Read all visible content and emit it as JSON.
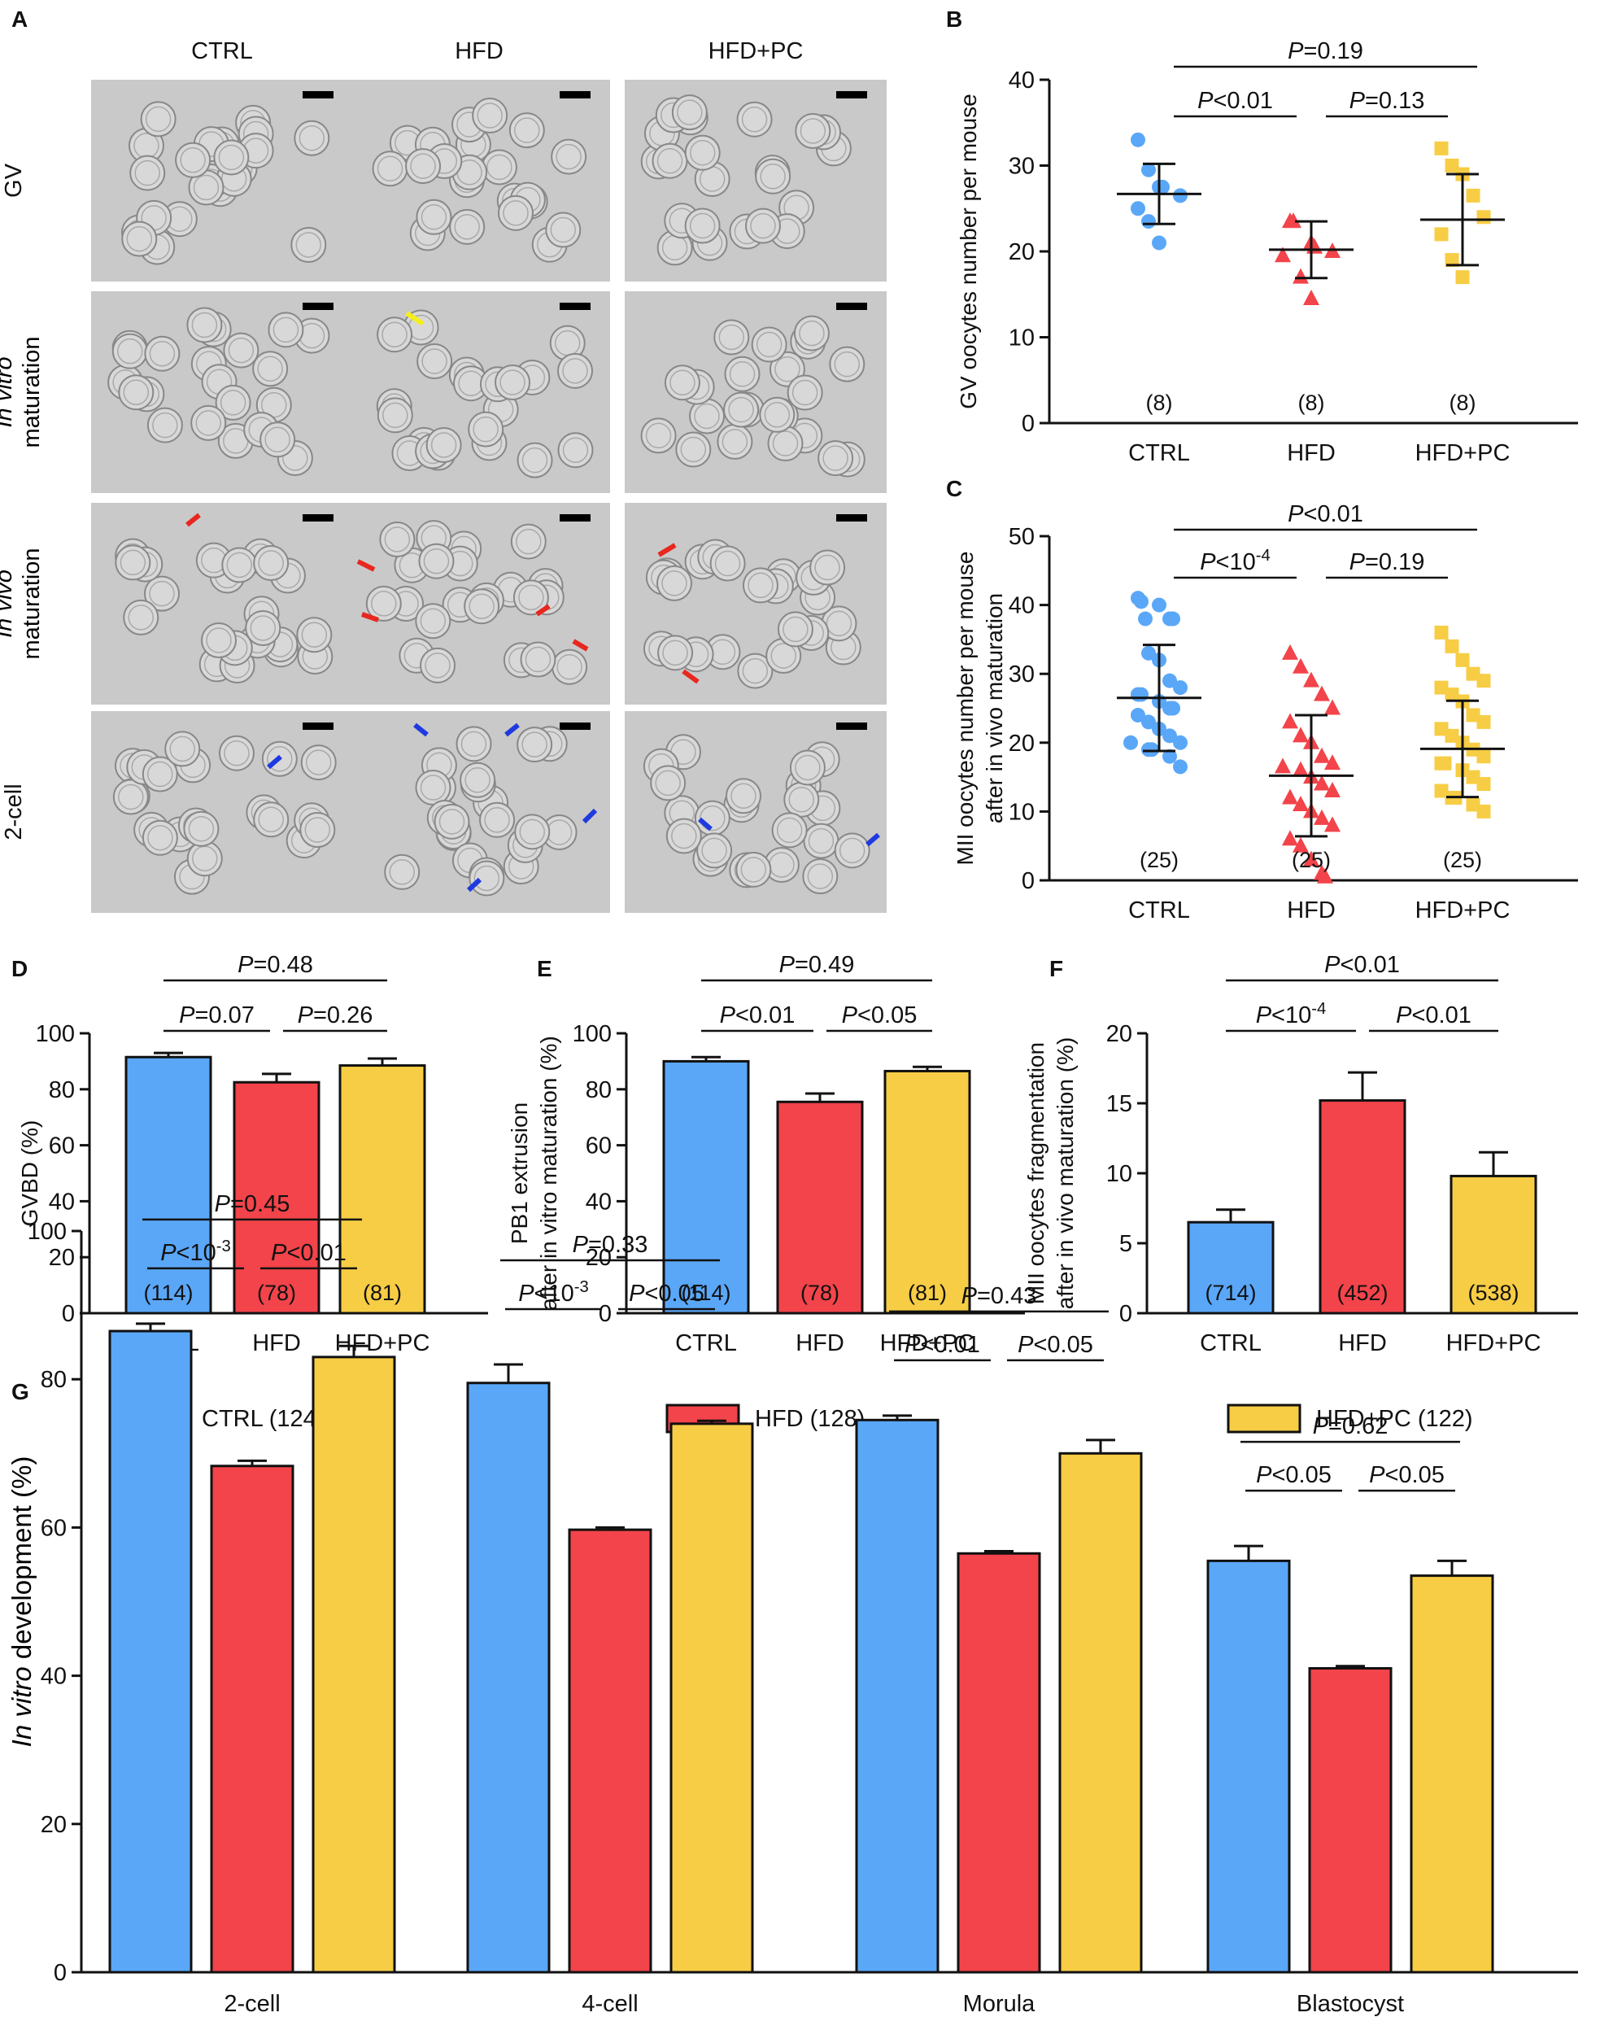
{
  "colors": {
    "ctrl": "#5aa7f8",
    "hfd": "#f2444a",
    "hfdpc": "#f7cd45",
    "red_arrow": "#e8271f",
    "blue_arrow": "#1f3ae0",
    "yellow_arrow": "#f4ef1b",
    "micrograph_bg": "#c9c9c9"
  },
  "panel_a": {
    "letter": "A",
    "columns": [
      "CTRL",
      "HFD",
      "HFD+PC"
    ],
    "rows": [
      {
        "label": "GV"
      },
      {
        "label_italic": "In vitro",
        "label2": "maturation"
      },
      {
        "label_italic": "In vivo",
        "label2": "maturation"
      },
      {
        "label": "2-cell"
      }
    ]
  },
  "chart_data": [
    {
      "id": "B",
      "type": "scatter",
      "letter": "B",
      "ylabel": "GV oocytes number per mouse",
      "categories": [
        "CTRL",
        "HFD",
        "HFD+PC"
      ],
      "ylim": [
        0,
        40
      ],
      "yticks": [
        0,
        10,
        20,
        30,
        40
      ],
      "series": [
        {
          "name": "CTRL",
          "values": [
            33,
            29.5,
            27.5,
            27.5,
            26.5,
            25,
            23.5,
            21
          ],
          "mean": 26.7,
          "sd": 3.5,
          "n": "(8)"
        },
        {
          "name": "HFD",
          "values": [
            23.5,
            23.5,
            21,
            20.5,
            20,
            19.5,
            17,
            14.5
          ],
          "mean": 20.2,
          "sd": 3.3,
          "n": "(8)"
        },
        {
          "name": "HFD+PC",
          "values": [
            32,
            30,
            29,
            26.5,
            24,
            22,
            19,
            17
          ],
          "mean": 23.7,
          "sd": 5.3,
          "n": "(8)"
        }
      ],
      "comparisons": [
        {
          "from": 0,
          "to": 2,
          "p": "=0.19"
        },
        {
          "from": 0,
          "to": 1,
          "p": "<0.01"
        },
        {
          "from": 1,
          "to": 2,
          "p": "=0.13"
        }
      ]
    },
    {
      "id": "C",
      "type": "scatter",
      "letter": "C",
      "ylabel": "MII oocytes number per mouse",
      "ylabel2": "after in vivo maturation",
      "categories": [
        "CTRL",
        "HFD",
        "HFD+PC"
      ],
      "ylim": [
        0,
        50
      ],
      "yticks": [
        0,
        10,
        20,
        30,
        40,
        50
      ],
      "series": [
        {
          "name": "CTRL",
          "values": [
            41,
            40.5,
            40,
            38,
            38,
            38,
            33,
            32,
            29,
            28,
            27,
            27,
            26,
            25,
            25,
            24,
            23,
            22,
            21,
            20,
            20,
            19,
            19,
            18,
            16.5
          ],
          "mean": 26.5,
          "sd": 7.7,
          "n": "(25)"
        },
        {
          "name": "HFD",
          "values": [
            33,
            31,
            29,
            27,
            25,
            23,
            21,
            20,
            18,
            17,
            16.5,
            16,
            15,
            14,
            13,
            12,
            11,
            10,
            9,
            8,
            6,
            5,
            3,
            1,
            0.5
          ],
          "mean": 15.2,
          "sd": 8.8,
          "n": "(25)"
        },
        {
          "name": "HFD+PC",
          "values": [
            36,
            34,
            32,
            30,
            29,
            28,
            27,
            26,
            24,
            23,
            22,
            21,
            20,
            19,
            18,
            17,
            17,
            16,
            15,
            14,
            13,
            12,
            12,
            11,
            10
          ],
          "mean": 19.1,
          "sd": 7.0,
          "n": "(25)"
        }
      ],
      "comparisons": [
        {
          "from": 0,
          "to": 2,
          "p": "<0.01"
        },
        {
          "from": 0,
          "to": 1,
          "p": "<10",
          "exp": "-4"
        },
        {
          "from": 1,
          "to": 2,
          "p": "=0.19"
        }
      ]
    },
    {
      "id": "D",
      "type": "bar",
      "letter": "D",
      "ylabel": "GVBD (%)",
      "categories": [
        "CTRL",
        "HFD",
        "HFD+PC"
      ],
      "ylim": [
        0,
        100
      ],
      "yticks": [
        0,
        20,
        40,
        60,
        80,
        100
      ],
      "values": [
        91.5,
        82.5,
        88.5
      ],
      "errors": [
        1.5,
        3.0,
        2.5
      ],
      "n": [
        "(114)",
        "(78)",
        "(81)"
      ],
      "comparisons": [
        {
          "from": 0,
          "to": 2,
          "p": "=0.48"
        },
        {
          "from": 0,
          "to": 1,
          "p": "=0.07"
        },
        {
          "from": 1,
          "to": 2,
          "p": "=0.26"
        }
      ]
    },
    {
      "id": "E",
      "type": "bar",
      "letter": "E",
      "ylabel": "PB1 extrusion",
      "ylabel2": "after in vitro maturation (%)",
      "categories": [
        "CTRL",
        "HFD",
        "HFD+PC"
      ],
      "ylim": [
        0,
        100
      ],
      "yticks": [
        0,
        20,
        40,
        60,
        80,
        100
      ],
      "values": [
        90,
        75.5,
        86.5
      ],
      "errors": [
        1.5,
        3.0,
        1.5
      ],
      "n": [
        "(114)",
        "(78)",
        "(81)"
      ],
      "comparisons": [
        {
          "from": 0,
          "to": 2,
          "p": "=0.49"
        },
        {
          "from": 0,
          "to": 1,
          "p": "<0.01"
        },
        {
          "from": 1,
          "to": 2,
          "p": "<0.05"
        }
      ]
    },
    {
      "id": "F",
      "type": "bar",
      "letter": "F",
      "ylabel": "MII oocytes fragmentation",
      "ylabel2": "after in vivo maturation (%)",
      "categories": [
        "CTRL",
        "HFD",
        "HFD+PC"
      ],
      "ylim": [
        0,
        20
      ],
      "yticks": [
        0,
        5,
        10,
        15,
        20
      ],
      "values": [
        6.5,
        15.2,
        9.8
      ],
      "errors": [
        0.9,
        2.0,
        1.7
      ],
      "n": [
        "(714)",
        "(452)",
        "(538)"
      ],
      "comparisons": [
        {
          "from": 0,
          "to": 2,
          "p": "<0.01"
        },
        {
          "from": 0,
          "to": 1,
          "p": "<10",
          "exp": "-4"
        },
        {
          "from": 1,
          "to": 2,
          "p": "<0.01"
        }
      ]
    },
    {
      "id": "G",
      "type": "bar",
      "letter": "G",
      "ylabel_italic": "In vitro",
      "ylabel": "development (%)",
      "categories": [
        "2-cell",
        "4-cell",
        "Morula",
        "Blastocyst"
      ],
      "ylim": [
        0,
        100
      ],
      "yticks": [
        0,
        20,
        40,
        60,
        80,
        100
      ],
      "legend": [
        "CTRL (124)",
        "HFD (128)",
        "HFD+PC (122)"
      ],
      "series": [
        {
          "name": "CTRL",
          "values": [
            86.5,
            79.5,
            74.5,
            55.5
          ],
          "errors": [
            1.0,
            2.5,
            0.6,
            2.0
          ]
        },
        {
          "name": "HFD",
          "values": [
            68.3,
            59.7,
            56.5,
            41.0
          ],
          "errors": [
            0.7,
            0.3,
            0.3,
            0.3
          ]
        },
        {
          "name": "HFD+PC",
          "values": [
            83.0,
            74.0,
            70.0,
            53.5
          ],
          "errors": [
            1.5,
            0.4,
            1.8,
            2.0
          ]
        }
      ],
      "comparisons": [
        [
          {
            "p": "=0.45"
          },
          {
            "p": "<10",
            "exp": "-3"
          },
          {
            "p": "<0.01"
          }
        ],
        [
          {
            "p": "=0.33"
          },
          {
            "p": "<10",
            "exp": "-3"
          },
          {
            "p": "<0.05"
          }
        ],
        [
          {
            "p": "=0.43"
          },
          {
            "p": "<0.01"
          },
          {
            "p": "<0.05"
          }
        ],
        [
          {
            "p": "=0.62"
          },
          {
            "p": "<0.05"
          },
          {
            "p": "<0.05"
          }
        ]
      ]
    }
  ]
}
